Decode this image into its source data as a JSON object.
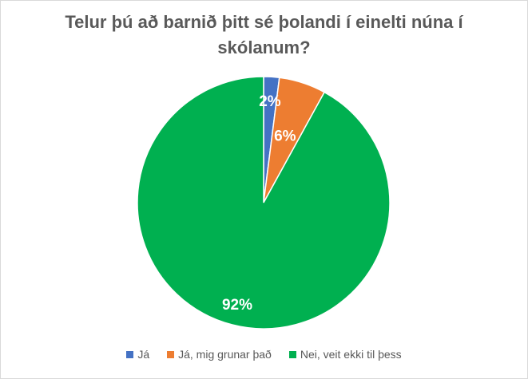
{
  "chart_data": {
    "type": "pie",
    "title_lines": [
      "Telur þú að barnið þitt sé þolandi í einelti núna í",
      "skólanum?"
    ],
    "categories": [
      "Já",
      "Já, mig grunar það",
      "Nei, veit ekki til þess"
    ],
    "values": [
      2,
      6,
      92
    ],
    "labels": [
      "2%",
      "6%",
      "92%"
    ],
    "colors": [
      "#4472c4",
      "#ed7d31",
      "#00b050"
    ],
    "legend_position": "bottom",
    "start_angle": "12 o'clock",
    "direction": "clockwise"
  }
}
